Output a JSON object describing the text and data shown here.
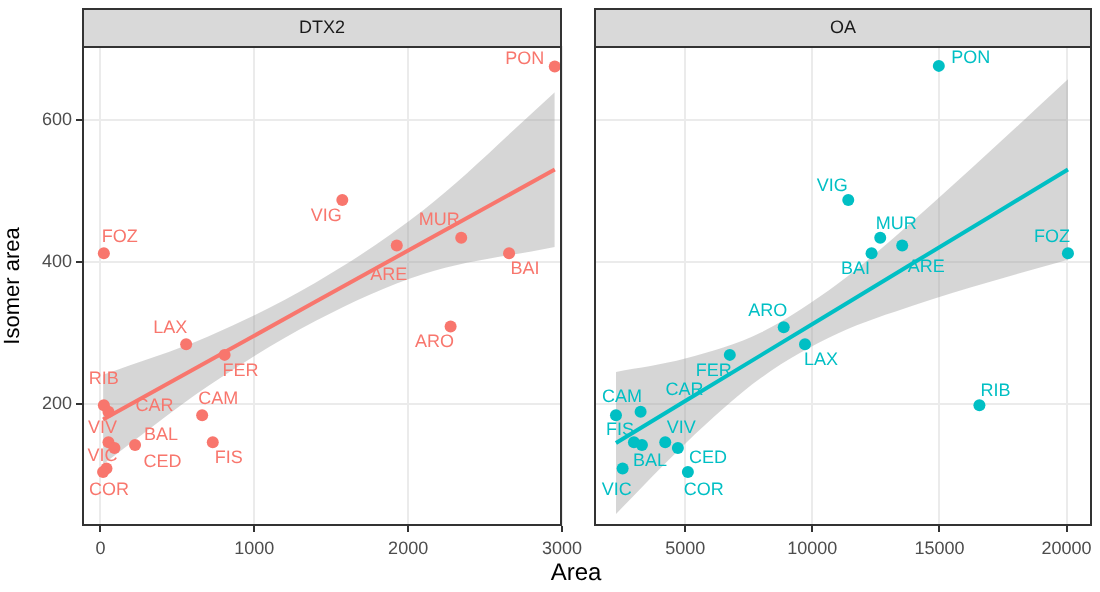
{
  "chart_data": [
    {
      "type": "scatter",
      "title": "DTX2",
      "ylabel": "Isomer area",
      "xlim": [
        -120,
        3000
      ],
      "xticks": [
        0,
        1000,
        2000,
        3000
      ],
      "ylim": [
        28,
        704
      ],
      "yticks": [
        200,
        400,
        600
      ],
      "grid": true,
      "legend": false,
      "series": [
        {
          "marker": "circle",
          "color": "#f8766d",
          "x": [
            2953,
            1572,
            1926,
            2345,
            2656,
            2276,
            22,
            557,
            807,
            661,
            730,
            225,
            22,
            52,
            52,
            91,
            39,
            17
          ],
          "values": [
            675,
            487,
            423,
            434,
            412,
            309,
            412,
            284,
            269,
            184,
            146,
            142,
            198,
            189,
            146,
            138,
            109,
            104
          ]
        },
        {
          "type": "line",
          "color": "#f8766d",
          "x": [
            17,
            700,
            1400,
            2100,
            2953
          ],
          "values": [
            178,
            260,
            344,
            428,
            530
          ],
          "lower": [
            115,
            225,
            317,
            383,
            421
          ],
          "upper": [
            241,
            295,
            371,
            473,
            639
          ]
        }
      ],
      "annotations": [
        {
          "text": "PON",
          "x": 2953,
          "y": 675
        },
        {
          "text": "VIG",
          "x": 1572,
          "y": 487
        },
        {
          "text": "ARE",
          "x": 1926,
          "y": 423
        },
        {
          "text": "MUR",
          "x": 2345,
          "y": 434
        },
        {
          "text": "BAI",
          "x": 2656,
          "y": 412
        },
        {
          "text": "ARO",
          "x": 2276,
          "y": 309
        },
        {
          "text": "FOZ",
          "x": 22,
          "y": 412
        },
        {
          "text": "LAX",
          "x": 557,
          "y": 284
        },
        {
          "text": "FER",
          "x": 807,
          "y": 269
        },
        {
          "text": "CAM",
          "x": 661,
          "y": 184
        },
        {
          "text": "FIS",
          "x": 730,
          "y": 146
        },
        {
          "text": "BAL",
          "x": 225,
          "y": 142
        },
        {
          "text": "RIB",
          "x": 22,
          "y": 198
        },
        {
          "text": "CAR",
          "x": 52,
          "y": 189
        },
        {
          "text": "VIV",
          "x": 52,
          "y": 146
        },
        {
          "text": "CED",
          "x": 91,
          "y": 138
        },
        {
          "text": "VIC",
          "x": 39,
          "y": 109
        },
        {
          "text": "COR",
          "x": 17,
          "y": 104
        }
      ]
    },
    {
      "type": "scatter",
      "title": "OA",
      "xlabel": "Area",
      "xlim": [
        1413,
        21000
      ],
      "xticks": [
        5000,
        10000,
        15000,
        20000
      ],
      "ylim": [
        28,
        704
      ],
      "yticks": [
        200,
        400,
        600
      ],
      "tick_labels": "x",
      "grid": true,
      "legend": false,
      "series": [
        {
          "marker": "circle",
          "color": "#00bfc4",
          "x": [
            14975,
            11414,
            13535,
            12671,
            12330,
            8875,
            20054,
            9712,
            6754,
            2277,
            2984,
            3298,
            16572,
            3246,
            4215,
            4712,
            2539,
            5105
          ],
          "values": [
            676,
            487,
            423,
            434,
            412,
            308,
            412,
            284,
            269,
            184,
            146,
            142,
            198,
            189,
            146,
            138,
            109,
            104
          ]
        },
        {
          "type": "line",
          "color": "#00bfc4",
          "x": [
            2277,
            5000,
            8000,
            11000,
            14000,
            17000,
            20054
          ],
          "values": [
            145,
            204,
            269,
            334,
            399,
            464,
            530
          ],
          "lower": [
            45,
            144,
            237,
            299,
            339,
            372,
            403
          ],
          "upper": [
            245,
            264,
            301,
            369,
            459,
            556,
            657
          ]
        }
      ],
      "annotations": [
        {
          "text": "PON",
          "x": 14975,
          "y": 676
        },
        {
          "text": "VIG",
          "x": 11414,
          "y": 487
        },
        {
          "text": "ARE",
          "x": 13535,
          "y": 423
        },
        {
          "text": "MUR",
          "x": 12671,
          "y": 434
        },
        {
          "text": "BAI",
          "x": 12330,
          "y": 412
        },
        {
          "text": "ARO",
          "x": 8875,
          "y": 308
        },
        {
          "text": "FOZ",
          "x": 20054,
          "y": 412
        },
        {
          "text": "LAX",
          "x": 9712,
          "y": 284
        },
        {
          "text": "FER",
          "x": 6754,
          "y": 269
        },
        {
          "text": "CAM",
          "x": 2277,
          "y": 184
        },
        {
          "text": "FIS",
          "x": 2984,
          "y": 146
        },
        {
          "text": "BAL",
          "x": 3298,
          "y": 142
        },
        {
          "text": "RIB",
          "x": 16572,
          "y": 198
        },
        {
          "text": "CAR",
          "x": 3246,
          "y": 189
        },
        {
          "text": "VIV",
          "x": 4215,
          "y": 146
        },
        {
          "text": "CED",
          "x": 4712,
          "y": 138
        },
        {
          "text": "VIC",
          "x": 2539,
          "y": 109
        },
        {
          "text": "COR",
          "x": 5105,
          "y": 104
        }
      ]
    }
  ]
}
